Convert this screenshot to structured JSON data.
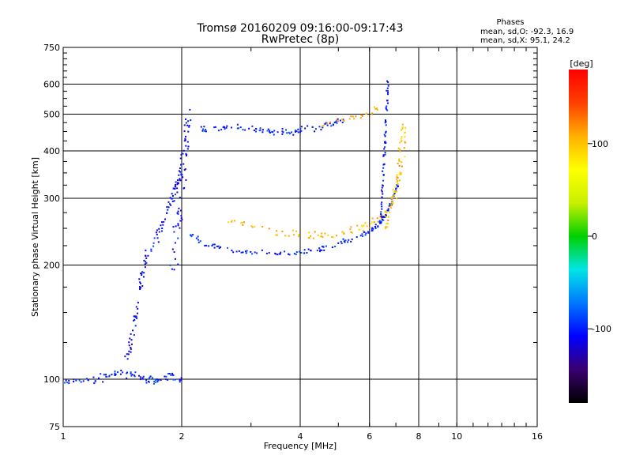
{
  "chart_data": {
    "type": "scatter",
    "title": "Tromsø 20160209 09:16:00-09:17:43",
    "subtitle": "RwPretec (8p)",
    "xlabel": "Frequency [MHz]",
    "ylabel": "Stationary phase Virtual Height [km]",
    "x_scale": "log",
    "y_scale": "log",
    "xlim": [
      1,
      16
    ],
    "ylim": [
      75,
      750
    ],
    "x_ticks": [
      1,
      2,
      4,
      6,
      8,
      10,
      16
    ],
    "y_ticks": [
      75,
      100,
      200,
      300,
      400,
      500,
      600,
      750
    ],
    "grid": true,
    "info": {
      "heading": "Phases",
      "line_o": "mean, sd,O: -92.3, 16.9",
      "line_x": "mean, sd,X:  95.1, 24.2"
    },
    "colorbar": {
      "label": "[deg]",
      "ticks": [
        100,
        0,
        -100
      ],
      "range": [
        -180,
        180
      ],
      "colors": [
        "#000000",
        "#3a0070",
        "#0000ff",
        "#0078ff",
        "#00e5e5",
        "#00d000",
        "#c8f000",
        "#ffff00",
        "#ffb000",
        "#ff4000",
        "#ff0000"
      ]
    },
    "traces": [
      {
        "name": "",
        "phase_deg": -100,
        "spread": 0.012,
        "density": 9,
        "x": [
          1.0,
          1.1,
          1.2,
          1.3,
          1.4,
          1.5,
          1.6,
          1.7,
          1.8,
          1.9,
          2.0
        ],
        "y": [
          98,
          99,
          100,
          102,
          104,
          103,
          100,
          99,
          101,
          103,
          100
        ]
      },
      {
        "name": "",
        "phase_deg": -110,
        "spread": 0.02,
        "density": 14,
        "x": [
          1.45,
          1.5,
          1.55,
          1.6,
          1.7,
          1.8,
          1.9,
          1.95,
          2.0
        ],
        "y": [
          110,
          130,
          160,
          200,
          230,
          260,
          300,
          330,
          350
        ]
      },
      {
        "name": "",
        "phase_deg": -110,
        "spread": 0.035,
        "density": 12,
        "x": [
          1.9,
          1.95,
          2.0,
          2.02,
          2.05,
          2.1
        ],
        "y": [
          200,
          250,
          300,
          380,
          430,
          500
        ]
      },
      {
        "name": "",
        "phase_deg": -100,
        "spread": 0.008,
        "density": 10,
        "x": [
          2.1,
          2.3,
          2.6,
          3.0,
          3.5,
          4.0,
          4.5,
          5.0,
          5.5,
          6.0,
          6.3,
          6.5,
          6.7,
          6.9,
          7.1
        ],
        "y": [
          240,
          228,
          220,
          216,
          215,
          216,
          220,
          228,
          235,
          245,
          255,
          265,
          280,
          300,
          330
        ]
      },
      {
        "name": "",
        "phase_deg": 105,
        "spread": 0.012,
        "density": 8,
        "x": [
          2.6,
          3.0,
          3.5,
          4.0,
          4.5,
          5.0,
          5.5,
          6.0,
          6.4,
          6.8,
          7.1,
          7.3,
          7.4
        ],
        "y": [
          265,
          255,
          245,
          240,
          238,
          240,
          245,
          255,
          265,
          285,
          320,
          380,
          460
        ]
      },
      {
        "name": "",
        "phase_deg": -100,
        "spread": 0.01,
        "density": 10,
        "x": [
          2.2,
          2.5,
          2.8,
          3.1,
          3.4,
          3.7,
          4.0,
          4.4,
          4.8,
          5.2
        ],
        "y": [
          455,
          460,
          458,
          452,
          448,
          450,
          455,
          460,
          470,
          490
        ]
      },
      {
        "name": "",
        "phase_deg": 110,
        "spread": 0.012,
        "density": 6,
        "x": [
          4.5,
          5.0,
          5.5,
          6.0,
          6.3
        ],
        "y": [
          470,
          480,
          495,
          505,
          520
        ]
      },
      {
        "name": "",
        "phase_deg": -105,
        "spread": 0.01,
        "density": 10,
        "x": [
          6.4,
          6.45,
          6.5,
          6.55,
          6.6,
          6.65,
          6.7
        ],
        "y": [
          250,
          300,
          350,
          400,
          460,
          540,
          610
        ]
      },
      {
        "name": "",
        "phase_deg": 100,
        "spread": 0.012,
        "density": 8,
        "x": [
          6.6,
          6.8,
          7.0,
          7.1,
          7.2,
          7.3
        ],
        "y": [
          250,
          280,
          320,
          360,
          420,
          480
        ]
      }
    ]
  }
}
